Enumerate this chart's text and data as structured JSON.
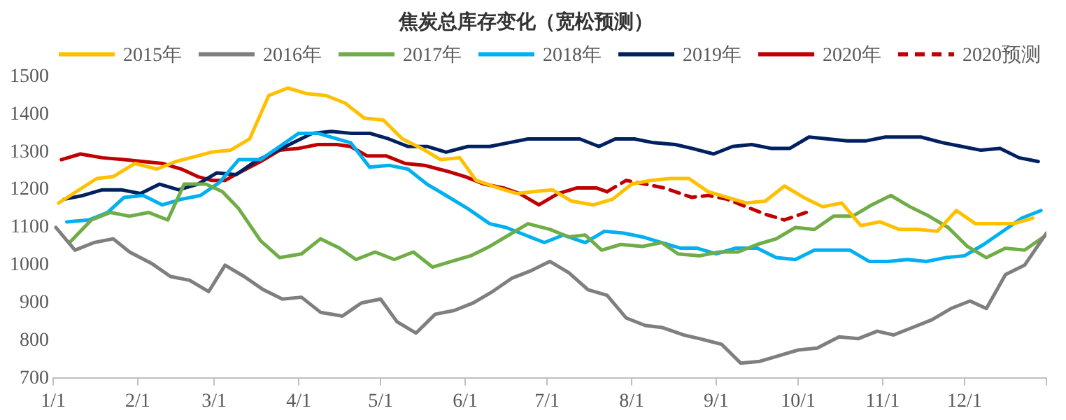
{
  "chart_data": {
    "type": "line",
    "title": "焦炭总库存变化（宽松预测）",
    "legend": "top",
    "grid": false,
    "marker": "none",
    "xlim": [
      "--01-01",
      "--12-31"
    ],
    "xticks": [
      {
        "value": "--01-01",
        "label": "1/1"
      },
      {
        "value": "--02-01",
        "label": "2/1"
      },
      {
        "value": "--03-01",
        "label": "3/1"
      },
      {
        "value": "--04-01",
        "label": "4/1"
      },
      {
        "value": "--05-01",
        "label": "5/1"
      },
      {
        "value": "--06-01",
        "label": "6/1"
      },
      {
        "value": "--07-01",
        "label": "7/1"
      },
      {
        "value": "--08-01",
        "label": "8/1"
      },
      {
        "value": "--09-01",
        "label": "9/1"
      },
      {
        "value": "--10-01",
        "label": "10/1"
      },
      {
        "value": "--11-01",
        "label": "11/1"
      },
      {
        "value": "--12-01",
        "label": "12/1"
      },
      {
        "value": "--12-31",
        "label": null
      }
    ],
    "ylim": [
      700,
      1500
    ],
    "yticks": [
      700,
      800,
      900,
      1000,
      1100,
      1200,
      1300,
      1400,
      1500
    ],
    "series": [
      {
        "name": "2015年",
        "color": "#ffc000",
        "line_style": "solid",
        "x": [
          "--01-03",
          "--01-17",
          "--01-23",
          "--01-31",
          "--02-08",
          "--02-15",
          "--02-23",
          "--02-28",
          "--03-07",
          "--03-14",
          "--03-21",
          "--03-28",
          "--04-04",
          "--04-11",
          "--04-18",
          "--04-25",
          "--05-02",
          "--05-09",
          "--05-16",
          "--05-23",
          "--05-30",
          "--06-05",
          "--06-13",
          "--06-20",
          "--06-26",
          "--07-03",
          "--07-10",
          "--07-18",
          "--07-25",
          "--08-01",
          "--08-08",
          "--08-15",
          "--08-22",
          "--08-29",
          "--09-05",
          "--09-12",
          "--09-19",
          "--09-26",
          "--10-03",
          "--10-10",
          "--10-17",
          "--10-24",
          "--10-31",
          "--11-07",
          "--11-14",
          "--11-21",
          "--11-28",
          "--12-05",
          "--12-12",
          "--12-19",
          "--12-26"
        ],
        "values": [
          1165,
          1230,
          1235,
          1270,
          1255,
          1275,
          1290,
          1300,
          1305,
          1335,
          1450,
          1470,
          1455,
          1450,
          1430,
          1390,
          1385,
          1335,
          1310,
          1280,
          1285,
          1225,
          1205,
          1190,
          1195,
          1200,
          1170,
          1160,
          1175,
          1215,
          1225,
          1230,
          1230,
          1195,
          1180,
          1165,
          1170,
          1210,
          1180,
          1155,
          1165,
          1105,
          1115,
          1095,
          1095,
          1090,
          1145,
          1110,
          1110,
          1110,
          1125
        ]
      },
      {
        "name": "2016年",
        "color": "#7f7f7f",
        "line_style": "solid",
        "x": [
          "--01-02",
          "--01-09",
          "--01-16",
          "--01-23",
          "--01-29",
          "--02-06",
          "--02-13",
          "--02-20",
          "--02-27",
          "--03-05",
          "--03-12",
          "--03-19",
          "--03-26",
          "--04-02",
          "--04-09",
          "--04-17",
          "--04-24",
          "--05-01",
          "--05-07",
          "--05-14",
          "--05-21",
          "--05-28",
          "--06-04",
          "--06-11",
          "--06-18",
          "--06-25",
          "--07-02",
          "--07-09",
          "--07-16",
          "--07-23",
          "--07-30",
          "--08-06",
          "--08-12",
          "--08-20",
          "--08-26",
          "--09-03",
          "--09-10",
          "--09-17",
          "--09-24",
          "--10-01",
          "--10-08",
          "--10-16",
          "--10-23",
          "--10-30",
          "--11-05",
          "--11-12",
          "--11-19",
          "--11-26",
          "--12-03",
          "--12-09",
          "--12-16",
          "--12-23",
          "--12-31"
        ],
        "values": [
          1100,
          1040,
          1060,
          1070,
          1035,
          1005,
          970,
          960,
          930,
          1000,
          970,
          935,
          910,
          915,
          875,
          865,
          900,
          910,
          850,
          820,
          870,
          880,
          900,
          930,
          965,
          985,
          1010,
          980,
          935,
          920,
          860,
          840,
          835,
          815,
          805,
          790,
          740,
          745,
          760,
          775,
          780,
          810,
          805,
          825,
          815,
          835,
          855,
          885,
          905,
          885,
          975,
          1000,
          1085
        ]
      },
      {
        "name": "2017年",
        "color": "#70ad47",
        "line_style": "solid",
        "x": [
          "--01-07",
          "--01-15",
          "--01-22",
          "--01-29",
          "--02-05",
          "--02-12",
          "--02-18",
          "--02-26",
          "--03-04",
          "--03-10",
          "--03-18",
          "--03-25",
          "--04-02",
          "--04-09",
          "--04-16",
          "--04-22",
          "--04-29",
          "--05-06",
          "--05-13",
          "--05-20",
          "--05-27",
          "--06-03",
          "--06-10",
          "--06-17",
          "--06-24",
          "--07-02",
          "--07-09",
          "--07-15",
          "--07-21",
          "--07-28",
          "--08-05",
          "--08-12",
          "--08-18",
          "--08-26",
          "--09-02",
          "--09-09",
          "--09-16",
          "--09-23",
          "--09-30",
          "--10-07",
          "--10-14",
          "--10-21",
          "--10-28",
          "--11-04",
          "--11-11",
          "--11-18",
          "--11-25",
          "--12-02",
          "--12-09",
          "--12-16",
          "--12-23",
          "--12-31"
        ],
        "values": [
          1060,
          1120,
          1140,
          1130,
          1140,
          1120,
          1215,
          1215,
          1195,
          1150,
          1065,
          1020,
          1030,
          1070,
          1045,
          1015,
          1035,
          1015,
          1035,
          995,
          1010,
          1025,
          1050,
          1080,
          1110,
          1095,
          1075,
          1080,
          1040,
          1055,
          1050,
          1060,
          1030,
          1025,
          1035,
          1035,
          1055,
          1070,
          1100,
          1095,
          1130,
          1130,
          1160,
          1185,
          1155,
          1130,
          1100,
          1050,
          1020,
          1045,
          1040,
          1080
        ]
      },
      {
        "name": "2018年",
        "color": "#00b0f0",
        "line_style": "solid",
        "x": [
          "--01-06",
          "--01-14",
          "--01-21",
          "--01-27",
          "--02-03",
          "--02-10",
          "--02-17",
          "--02-24",
          "--03-03",
          "--03-10",
          "--03-18",
          "--03-25",
          "--04-01",
          "--04-08",
          "--04-15",
          "--04-20",
          "--04-27",
          "--05-04",
          "--05-11",
          "--05-18",
          "--05-25",
          "--06-02",
          "--06-10",
          "--06-16",
          "--06-23",
          "--06-30",
          "--07-07",
          "--07-15",
          "--07-22",
          "--07-29",
          "--08-05",
          "--08-12",
          "--08-19",
          "--08-25",
          "--09-01",
          "--09-08",
          "--09-16",
          "--09-23",
          "--09-30",
          "--10-07",
          "--10-14",
          "--10-20",
          "--10-27",
          "--11-03",
          "--11-10",
          "--11-17",
          "--11-24",
          "--12-01",
          "--12-08",
          "--12-16",
          "--12-22",
          "--12-29"
        ],
        "values": [
          1115,
          1120,
          1140,
          1180,
          1185,
          1160,
          1175,
          1185,
          1220,
          1280,
          1280,
          1315,
          1350,
          1350,
          1335,
          1325,
          1260,
          1265,
          1255,
          1215,
          1185,
          1150,
          1110,
          1100,
          1080,
          1060,
          1080,
          1060,
          1090,
          1085,
          1075,
          1060,
          1045,
          1045,
          1030,
          1045,
          1045,
          1020,
          1015,
          1040,
          1040,
          1040,
          1010,
          1010,
          1015,
          1010,
          1020,
          1025,
          1055,
          1095,
          1125,
          1145
        ]
      },
      {
        "name": "2019年",
        "color": "#002060",
        "line_style": "solid",
        "x": [
          "--01-05",
          "--01-12",
          "--01-19",
          "--01-26",
          "--02-02",
          "--02-09",
          "--02-16",
          "--02-23",
          "--03-02",
          "--03-09",
          "--03-16",
          "--03-23",
          "--03-30",
          "--04-06",
          "--04-13",
          "--04-20",
          "--04-27",
          "--05-04",
          "--05-11",
          "--05-18",
          "--05-25",
          "--06-02",
          "--06-10",
          "--06-17",
          "--06-24",
          "--07-01",
          "--07-07",
          "--07-13",
          "--07-20",
          "--07-26",
          "--08-02",
          "--08-09",
          "--08-17",
          "--08-23",
          "--08-31",
          "--09-07",
          "--09-14",
          "--09-21",
          "--09-28",
          "--10-05",
          "--10-12",
          "--10-19",
          "--10-26",
          "--11-02",
          "--11-09",
          "--11-15",
          "--11-23",
          "--11-30",
          "--12-07",
          "--12-14",
          "--12-21",
          "--12-28"
        ],
        "values": [
          1175,
          1185,
          1200,
          1200,
          1190,
          1215,
          1200,
          1215,
          1245,
          1240,
          1275,
          1300,
          1325,
          1350,
          1355,
          1350,
          1350,
          1335,
          1315,
          1315,
          1300,
          1315,
          1315,
          1325,
          1335,
          1335,
          1335,
          1335,
          1315,
          1335,
          1335,
          1325,
          1320,
          1310,
          1295,
          1315,
          1320,
          1310,
          1310,
          1340,
          1335,
          1330,
          1330,
          1340,
          1340,
          1340,
          1325,
          1315,
          1305,
          1310,
          1285,
          1275
        ]
      },
      {
        "name": "2020年",
        "color": "#c00000",
        "line_style": "solid",
        "x": [
          "--01-04",
          "--01-11",
          "--01-19",
          "--01-27",
          "--02-03",
          "--02-10",
          "--02-17",
          "--02-23",
          "--02-28",
          "--03-05",
          "--03-10",
          "--03-18",
          "--03-25",
          "--04-01",
          "--04-08",
          "--04-15",
          "--04-20",
          "--04-26",
          "--05-03",
          "--05-10",
          "--05-17",
          "--05-25",
          "--06-01",
          "--06-08",
          "--06-15",
          "--06-21",
          "--06-28",
          "--07-05",
          "--07-12",
          "--07-19",
          "--07-23"
        ],
        "values": [
          1280,
          1295,
          1285,
          1280,
          1275,
          1270,
          1255,
          1235,
          1225,
          1225,
          1245,
          1275,
          1305,
          1310,
          1320,
          1320,
          1315,
          1290,
          1290,
          1270,
          1265,
          1250,
          1235,
          1215,
          1205,
          1190,
          1160,
          1190,
          1205,
          1205,
          1195
        ]
      },
      {
        "name": "2020预测",
        "color": "#c00000",
        "line_style": "dashed",
        "x": [
          "--07-23",
          "--07-30",
          "--08-06",
          "--08-13",
          "--08-23",
          "--08-29",
          "--09-05",
          "--09-12",
          "--09-19",
          "--09-26",
          "--10-04"
        ],
        "values": [
          1195,
          1225,
          1215,
          1205,
          1180,
          1185,
          1175,
          1155,
          1135,
          1120,
          1140
        ]
      }
    ]
  }
}
